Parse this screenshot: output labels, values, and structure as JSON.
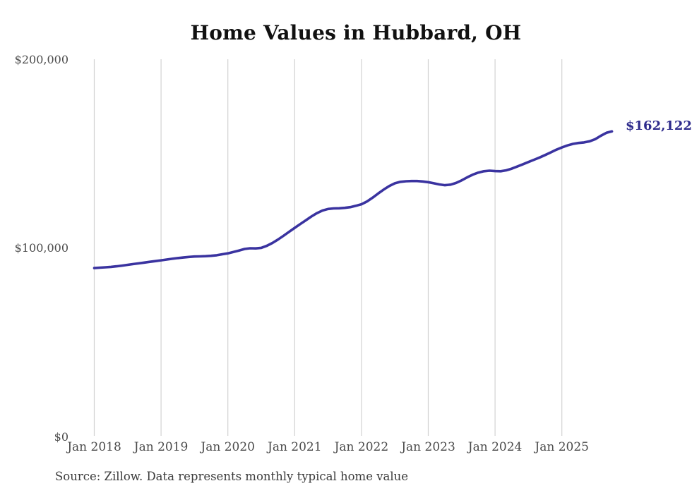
{
  "chart_data": {
    "type": "line",
    "title": "Home Values in Hubbard, OH",
    "series_name": "Typical home value",
    "frequency": "monthly",
    "start_month": "Jan 2018",
    "end_month": "Oct 2025",
    "x_tick_labels": [
      "Jan 2018",
      "Jan 2019",
      "Jan 2020",
      "Jan 2021",
      "Jan 2022",
      "Jan 2023",
      "Jan 2024",
      "Jan 2025"
    ],
    "y_tick_labels": [
      "$200,000",
      "$100,000",
      "$0"
    ],
    "ylim": [
      0,
      200000
    ],
    "grid": "vertical-year-lines-only",
    "legend": "none",
    "line_color": "#3a33a0",
    "gridline_color": "#d2d2d2",
    "end_label": "$162,122",
    "final_value": 162122,
    "source": "Source: Zillow. Data represents monthly typical home value",
    "values": [
      89700,
      89900,
      90100,
      90300,
      90600,
      91000,
      91400,
      91800,
      92200,
      92600,
      93000,
      93400,
      93800,
      94200,
      94600,
      95000,
      95300,
      95600,
      95800,
      95900,
      96000,
      96200,
      96500,
      97000,
      97500,
      98200,
      99000,
      99800,
      100200,
      100100,
      100400,
      101500,
      103000,
      104800,
      106800,
      108900,
      111000,
      113000,
      115000,
      117000,
      118800,
      120200,
      121000,
      121300,
      121400,
      121600,
      122000,
      122700,
      123500,
      125000,
      127000,
      129200,
      131300,
      133200,
      134600,
      135400,
      135700,
      135800,
      135800,
      135600,
      135200,
      134600,
      134000,
      133600,
      133900,
      134800,
      136200,
      137800,
      139200,
      140300,
      141000,
      141300,
      141100,
      141000,
      141500,
      142400,
      143500,
      144700,
      145900,
      147100,
      148300,
      149600,
      151000,
      152400,
      153600,
      154700,
      155500,
      156000,
      156300,
      156900,
      158000,
      159800,
      161400,
      162122
    ]
  }
}
